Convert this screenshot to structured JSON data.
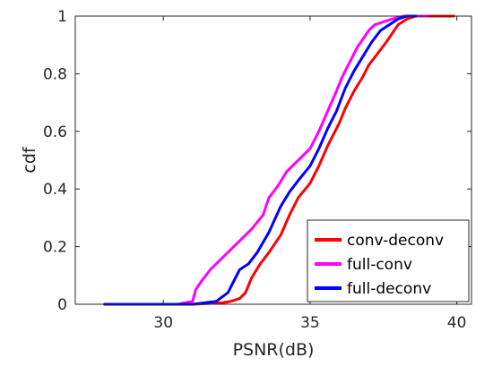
{
  "chart_data": {
    "type": "line",
    "xlabel": "PSNR(dB)",
    "ylabel": "cdf",
    "xlim": [
      27,
      40.5
    ],
    "ylim": [
      0,
      1
    ],
    "x_ticks": [
      30,
      35,
      40
    ],
    "y_ticks": [
      0,
      0.2,
      0.4,
      0.6,
      0.8,
      1
    ],
    "x_tick_labels": [
      "30",
      "35",
      "40"
    ],
    "y_tick_labels": [
      "0",
      "0.2",
      "0.4",
      "0.6",
      "0.8",
      "1"
    ],
    "grid": false,
    "legend_position": "bottom-right",
    "series": [
      {
        "name": "conv-deconv",
        "color": "#ff0000",
        "x": [
          28.0,
          31.0,
          32.0,
          32.3,
          32.6,
          32.8,
          33.0,
          33.3,
          33.6,
          34.0,
          34.3,
          34.6,
          35.0,
          35.3,
          35.6,
          36.0,
          36.2,
          36.5,
          36.8,
          37.0,
          37.3,
          37.6,
          37.8,
          38.0,
          38.3,
          38.6,
          39.0,
          39.3,
          39.6,
          39.9
        ],
        "y": [
          0.0,
          0.0,
          0.005,
          0.01,
          0.02,
          0.04,
          0.09,
          0.14,
          0.18,
          0.24,
          0.31,
          0.37,
          0.42,
          0.48,
          0.55,
          0.63,
          0.68,
          0.74,
          0.79,
          0.83,
          0.87,
          0.91,
          0.94,
          0.97,
          0.99,
          1.0,
          1.0,
          1.0,
          1.0,
          1.0
        ]
      },
      {
        "name": "full-conv",
        "color": "#ff00ff",
        "x": [
          28.0,
          30.5,
          31.0,
          31.1,
          31.3,
          31.6,
          32.0,
          32.5,
          33.0,
          33.4,
          33.6,
          33.9,
          34.2,
          34.6,
          35.0,
          35.3,
          35.6,
          35.9,
          36.1,
          36.4,
          36.6,
          36.8,
          37.0,
          37.2,
          37.5,
          37.8,
          38.2,
          38.6,
          39.0
        ],
        "y": [
          0.0,
          0.0,
          0.01,
          0.05,
          0.08,
          0.12,
          0.16,
          0.21,
          0.26,
          0.31,
          0.37,
          0.41,
          0.46,
          0.5,
          0.54,
          0.6,
          0.67,
          0.74,
          0.79,
          0.85,
          0.89,
          0.92,
          0.95,
          0.97,
          0.98,
          0.99,
          1.0,
          1.0,
          1.0
        ]
      },
      {
        "name": "full-deconv",
        "color": "#0000ff",
        "x": [
          28.0,
          31.0,
          31.8,
          32.2,
          32.4,
          32.6,
          32.9,
          33.2,
          33.6,
          34.0,
          34.3,
          34.6,
          35.0,
          35.3,
          35.6,
          35.9,
          36.2,
          36.5,
          36.8,
          37.1,
          37.4,
          37.7,
          38.0,
          38.3,
          38.6
        ],
        "y": [
          0.0,
          0.0,
          0.01,
          0.04,
          0.08,
          0.12,
          0.14,
          0.18,
          0.25,
          0.34,
          0.39,
          0.43,
          0.48,
          0.54,
          0.61,
          0.67,
          0.75,
          0.81,
          0.86,
          0.91,
          0.95,
          0.97,
          0.99,
          1.0,
          1.0
        ]
      }
    ]
  }
}
